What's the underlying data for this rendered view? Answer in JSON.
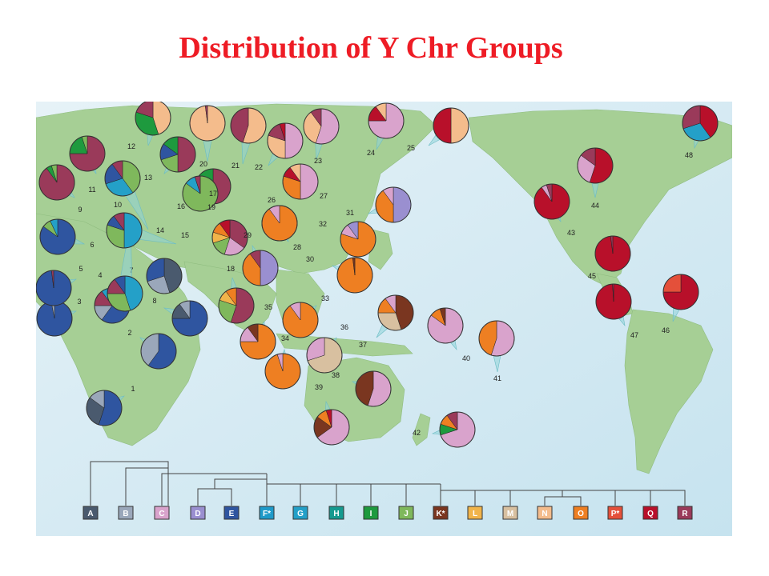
{
  "title": "Distribution of Y Chr Groups",
  "haplogroups": [
    {
      "label": "A",
      "color": "#4a5a6e"
    },
    {
      "label": "B",
      "color": "#9aa7ba"
    },
    {
      "label": "C",
      "color": "#d9a3cc"
    },
    {
      "label": "D",
      "color": "#9a8fd0"
    },
    {
      "label": "E",
      "color": "#2f55a0"
    },
    {
      "label": "F*",
      "color": "#1f9ac9"
    },
    {
      "label": "G",
      "color": "#24a0c8"
    },
    {
      "label": "H",
      "color": "#159a8f"
    },
    {
      "label": "I",
      "color": "#1e9a3e"
    },
    {
      "label": "J",
      "color": "#7fb85c"
    },
    {
      "label": "K*",
      "color": "#7a3620"
    },
    {
      "label": "L",
      "color": "#f1b44a"
    },
    {
      "label": "M",
      "color": "#d8c0a0"
    },
    {
      "label": "N",
      "color": "#f4bc8c"
    },
    {
      "label": "O",
      "color": "#ee7f22"
    },
    {
      "label": "P*",
      "color": "#e4503a"
    },
    {
      "label": "Q",
      "color": "#b8102a"
    },
    {
      "label": "R",
      "color": "#9a3a5a"
    }
  ],
  "pies": [
    {
      "id": "1",
      "slices": [
        [
          "E",
          0.55
        ],
        [
          "A",
          0.3
        ],
        [
          "B",
          0.15
        ]
      ]
    },
    {
      "id": "2",
      "slices": [
        [
          "E",
          0.6
        ],
        [
          "B",
          0.4
        ]
      ]
    },
    {
      "id": "3",
      "slices": [
        [
          "E",
          0.97
        ],
        [
          "B",
          0.03
        ]
      ]
    },
    {
      "id": "4",
      "slices": [
        [
          "E",
          0.6
        ],
        [
          "B",
          0.15
        ],
        [
          "R",
          0.15
        ],
        [
          "G",
          0.1
        ]
      ]
    },
    {
      "id": "5",
      "slices": [
        [
          "E",
          0.98
        ],
        [
          "R",
          0.02
        ]
      ]
    },
    {
      "id": "6",
      "slices": [
        [
          "E",
          0.85
        ],
        [
          "J",
          0.08
        ],
        [
          "G",
          0.07
        ]
      ]
    },
    {
      "id": "7",
      "slices": [
        [
          "A",
          0.45
        ],
        [
          "B",
          0.25
        ],
        [
          "E",
          0.3
        ]
      ]
    },
    {
      "id": "8",
      "slices": [
        [
          "E",
          0.75
        ],
        [
          "A",
          0.15
        ],
        [
          "B",
          0.1
        ]
      ]
    },
    {
      "id": "9",
      "slices": [
        [
          "R",
          0.9
        ],
        [
          "I",
          0.05
        ],
        [
          "J",
          0.05
        ]
      ]
    },
    {
      "id": "10",
      "slices": [
        [
          "G",
          0.45
        ],
        [
          "J",
          0.3
        ],
        [
          "R",
          0.15
        ],
        [
          "E",
          0.1
        ]
      ]
    },
    {
      "id": "11",
      "slices": [
        [
          "R",
          0.75
        ],
        [
          "I",
          0.2
        ],
        [
          "J",
          0.05
        ]
      ]
    },
    {
      "id": "12",
      "slices": [
        [
          "N",
          0.45
        ],
        [
          "I",
          0.35
        ],
        [
          "R",
          0.2
        ]
      ]
    },
    {
      "id": "13",
      "slices": [
        [
          "R",
          0.5
        ],
        [
          "J",
          0.2
        ],
        [
          "E",
          0.15
        ],
        [
          "I",
          0.15
        ]
      ]
    },
    {
      "id": "14",
      "slices": [
        [
          "J",
          0.4
        ],
        [
          "G",
          0.3
        ],
        [
          "E",
          0.2
        ],
        [
          "R",
          0.1
        ]
      ]
    },
    {
      "id": "15",
      "slices": [
        [
          "G",
          0.5
        ],
        [
          "J",
          0.3
        ],
        [
          "E",
          0.1
        ],
        [
          "R",
          0.1
        ]
      ]
    },
    {
      "id": "16",
      "slices": [
        [
          "R",
          0.7
        ],
        [
          "N",
          0.15
        ],
        [
          "I",
          0.15
        ]
      ]
    },
    {
      "id": "17",
      "slices": [
        [
          "J",
          0.85
        ],
        [
          "G",
          0.1
        ],
        [
          "R",
          0.05
        ]
      ]
    },
    {
      "id": "18",
      "slices": [
        [
          "R",
          0.55
        ],
        [
          "J",
          0.25
        ],
        [
          "L",
          0.1
        ],
        [
          "O",
          0.1
        ]
      ]
    },
    {
      "id": "19",
      "slices": [
        [
          "R",
          0.35
        ],
        [
          "C",
          0.2
        ],
        [
          "J",
          0.15
        ],
        [
          "L",
          0.1
        ],
        [
          "O",
          0.1
        ],
        [
          "Q",
          0.1
        ]
      ]
    },
    {
      "id": "20",
      "slices": [
        [
          "N",
          0.98
        ],
        [
          "R",
          0.02
        ]
      ]
    },
    {
      "id": "21",
      "slices": [
        [
          "N",
          0.55
        ],
        [
          "R",
          0.45
        ]
      ]
    },
    {
      "id": "22",
      "slices": [
        [
          "C",
          0.5
        ],
        [
          "N",
          0.3
        ],
        [
          "R",
          0.15
        ],
        [
          "Q",
          0.05
        ]
      ]
    },
    {
      "id": "23",
      "slices": [
        [
          "C",
          0.55
        ],
        [
          "N",
          0.35
        ],
        [
          "R",
          0.1
        ]
      ]
    },
    {
      "id": "24",
      "slices": [
        [
          "C",
          0.75
        ],
        [
          "Q",
          0.15
        ],
        [
          "N",
          0.1
        ]
      ]
    },
    {
      "id": "25",
      "slices": [
        [
          "N",
          0.5
        ],
        [
          "Q",
          0.5
        ]
      ]
    },
    {
      "id": "26",
      "slices": [
        [
          "O",
          0.7
        ],
        [
          "C",
          0.15
        ],
        [
          "R",
          0.1
        ],
        [
          "Q",
          0.05
        ]
      ]
    },
    {
      "id": "27",
      "slices": [
        [
          "C",
          0.5
        ],
        [
          "O",
          0.3
        ],
        [
          "Q",
          0.1
        ],
        [
          "N",
          0.1
        ]
      ]
    },
    {
      "id": "28",
      "slices": [
        [
          "O",
          0.9
        ],
        [
          "C",
          0.1
        ]
      ]
    },
    {
      "id": "29",
      "slices": [
        [
          "D",
          0.5
        ],
        [
          "O",
          0.4
        ],
        [
          "R",
          0.1
        ]
      ]
    },
    {
      "id": "30",
      "slices": [
        [
          "O",
          0.98
        ],
        [
          "K*",
          0.02
        ]
      ]
    },
    {
      "id": "31",
      "slices": [
        [
          "D",
          0.5
        ],
        [
          "O",
          0.4
        ],
        [
          "C",
          0.1
        ]
      ]
    },
    {
      "id": "32",
      "slices": [
        [
          "O",
          0.8
        ],
        [
          "C",
          0.1
        ],
        [
          "D",
          0.1
        ]
      ]
    },
    {
      "id": "33",
      "slices": [
        [
          "O",
          0.9
        ],
        [
          "C",
          0.1
        ]
      ]
    },
    {
      "id": "34",
      "slices": [
        [
          "O",
          0.95
        ],
        [
          "C",
          0.05
        ]
      ]
    },
    {
      "id": "35",
      "slices": [
        [
          "O",
          0.75
        ],
        [
          "C",
          0.15
        ],
        [
          "K*",
          0.1
        ]
      ]
    },
    {
      "id": "36",
      "slices": [
        [
          "M",
          0.7
        ],
        [
          "C",
          0.3
        ]
      ]
    },
    {
      "id": "37",
      "slices": [
        [
          "K*",
          0.45
        ],
        [
          "M",
          0.3
        ],
        [
          "O",
          0.15
        ],
        [
          "C",
          0.1
        ]
      ]
    },
    {
      "id": "38",
      "slices": [
        [
          "C",
          0.55
        ],
        [
          "K*",
          0.45
        ]
      ]
    },
    {
      "id": "39",
      "slices": [
        [
          "C",
          0.65
        ],
        [
          "K*",
          0.2
        ],
        [
          "O",
          0.1
        ],
        [
          "Q",
          0.05
        ]
      ]
    },
    {
      "id": "40",
      "slices": [
        [
          "C",
          0.85
        ],
        [
          "O",
          0.1
        ],
        [
          "K*",
          0.05
        ]
      ]
    },
    {
      "id": "41",
      "slices": [
        [
          "C",
          0.55
        ],
        [
          "O",
          0.45
        ]
      ]
    },
    {
      "id": "42",
      "slices": [
        [
          "C",
          0.7
        ],
        [
          "I",
          0.1
        ],
        [
          "O",
          0.1
        ],
        [
          "R",
          0.1
        ]
      ]
    },
    {
      "id": "43",
      "slices": [
        [
          "Q",
          0.9
        ],
        [
          "C",
          0.05
        ],
        [
          "R",
          0.05
        ]
      ]
    },
    {
      "id": "44",
      "slices": [
        [
          "Q",
          0.55
        ],
        [
          "C",
          0.3
        ],
        [
          "R",
          0.15
        ]
      ]
    },
    {
      "id": "45",
      "slices": [
        [
          "Q",
          0.98
        ],
        [
          "R",
          0.02
        ]
      ]
    },
    {
      "id": "46",
      "slices": [
        [
          "Q",
          0.75
        ],
        [
          "P*",
          0.25
        ]
      ]
    },
    {
      "id": "47",
      "slices": [
        [
          "Q",
          0.99
        ],
        [
          "R",
          0.01
        ]
      ]
    },
    {
      "id": "48",
      "slices": [
        [
          "Q",
          0.4
        ],
        [
          "G",
          0.3
        ],
        [
          "R",
          0.3
        ]
      ]
    }
  ]
}
